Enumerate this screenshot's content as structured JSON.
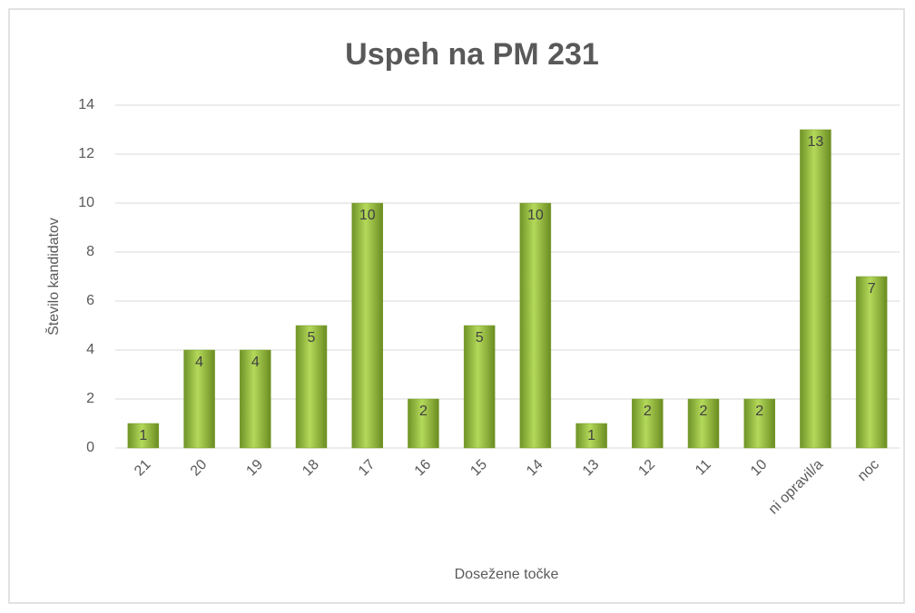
{
  "chart_data": {
    "type": "bar",
    "title": "Uspeh na PM 231",
    "x_label": "Dosežene točke",
    "y_label": "Število kandidatov",
    "categories": [
      "21",
      "20",
      "19",
      "18",
      "17",
      "16",
      "15",
      "14",
      "13",
      "12",
      "11",
      "10",
      "ni opravil/a",
      "noc"
    ],
    "values": [
      1,
      4,
      4,
      5,
      10,
      2,
      5,
      10,
      1,
      2,
      2,
      2,
      13,
      7
    ],
    "color": "#8db83a",
    "ylim": [
      0,
      14
    ],
    "yticks": [
      0,
      2,
      4,
      6,
      8,
      10,
      12,
      14
    ],
    "grid": true
  }
}
